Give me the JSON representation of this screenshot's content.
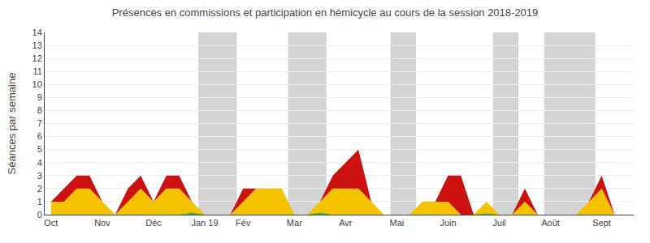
{
  "chart_data": {
    "type": "area",
    "title": "Présences en commissions et participation en hémicycle au cours de la session 2018-2019",
    "ylabel": "Séances par semaine",
    "categories": [
      "Oct",
      null,
      null,
      null,
      "Nov",
      null,
      null,
      null,
      "Déc",
      null,
      null,
      null,
      "Jan 19",
      null,
      null,
      "Fév",
      null,
      null,
      null,
      "Mar",
      null,
      null,
      null,
      "Avr",
      null,
      null,
      null,
      "Mai",
      null,
      null,
      null,
      "Juin",
      null,
      null,
      null,
      "Juil",
      null,
      null,
      null,
      "Août",
      null,
      null,
      null,
      "Sept",
      null,
      null
    ],
    "series": [
      {
        "type": "stacked_area",
        "color": "#f5c200",
        "values": [
          1,
          1,
          2,
          2,
          1,
          0,
          1,
          2,
          1,
          2,
          2,
          1,
          0,
          0,
          0,
          1,
          2,
          2,
          2,
          0,
          0,
          1,
          2,
          2,
          2,
          1,
          0,
          0,
          0,
          1,
          1,
          1,
          0,
          0,
          1,
          0,
          0,
          1,
          0,
          0,
          0,
          0,
          1,
          2,
          0,
          0
        ]
      },
      {
        "type": "stacked_area",
        "color": "#cc1111",
        "values": [
          0,
          1,
          1,
          1,
          0,
          0,
          1,
          1,
          0,
          1,
          1,
          0,
          0,
          0,
          0,
          1,
          0,
          0,
          0,
          0,
          0,
          0,
          1,
          2,
          3,
          0,
          0,
          0,
          0,
          0,
          0,
          2,
          3,
          0,
          0,
          0,
          0,
          1,
          0,
          0,
          0,
          0,
          0,
          1,
          0,
          0
        ]
      },
      {
        "type": "area",
        "color": "#44bb33",
        "values": [
          0,
          0,
          0,
          0,
          0,
          0,
          0,
          0,
          0,
          0,
          0,
          0.15,
          0,
          0,
          0,
          0,
          0,
          0,
          0,
          0,
          0,
          0.15,
          0,
          0,
          0,
          0,
          0,
          0,
          0,
          0,
          0,
          0,
          0,
          0,
          0.1,
          0,
          0,
          0,
          0,
          0,
          0,
          0,
          0,
          0,
          0,
          0
        ]
      }
    ],
    "bands": [
      [
        11.5,
        14.5
      ],
      [
        18.5,
        21.5
      ],
      [
        26.5,
        28.5
      ],
      [
        34.5,
        36.5
      ],
      [
        38.5,
        42.5
      ]
    ],
    "ylim": [
      0,
      14
    ],
    "yticks": [
      0,
      1,
      2,
      3,
      4,
      5,
      6,
      7,
      8,
      9,
      10,
      11,
      12,
      13,
      14
    ],
    "grid": true
  }
}
